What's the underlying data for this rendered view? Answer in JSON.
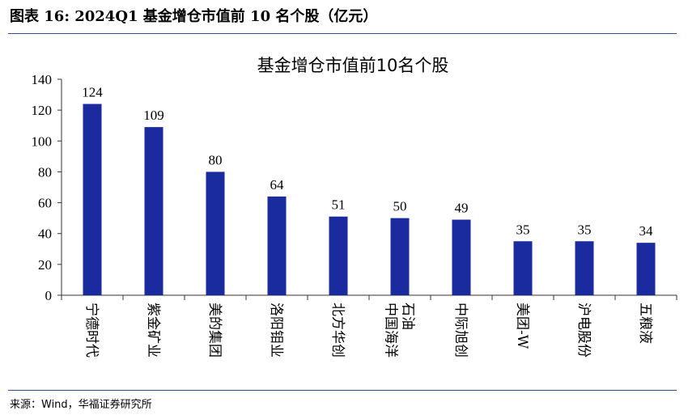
{
  "figure": {
    "title": "图表 16:  2024Q1 基金增仓市值前 10 名个股（亿元）",
    "source": "来源：Wind，华福证券研究所"
  },
  "colors": {
    "bar": "#1a2ba0",
    "rule": "#2f4f8f",
    "axis": "#333333"
  },
  "chart_data": {
    "type": "bar",
    "title": "基金增仓市值前10名个股",
    "categories": [
      "宁德时代",
      "紫金矿业",
      "美的集团",
      "洛阳钼业",
      "北方华创",
      "中国海洋石油",
      "中际旭创",
      "美团-W",
      "沪电股份",
      "五粮液"
    ],
    "category_lines": [
      [
        "宁德时代"
      ],
      [
        "紫金矿业"
      ],
      [
        "美的集团"
      ],
      [
        "洛阳钼业"
      ],
      [
        "北方华创"
      ],
      [
        "中国海洋",
        "石油"
      ],
      [
        "中际旭创"
      ],
      [
        "美团-W"
      ],
      [
        "沪电股份"
      ],
      [
        "五粮液"
      ]
    ],
    "values": [
      124,
      109,
      80,
      64,
      51,
      50,
      49,
      35,
      35,
      34
    ],
    "ylim": [
      0,
      140
    ],
    "yticks": [
      0,
      20,
      40,
      60,
      80,
      100,
      120,
      140
    ],
    "xlabel": "",
    "ylabel": "",
    "grid": false,
    "legend": "none"
  }
}
